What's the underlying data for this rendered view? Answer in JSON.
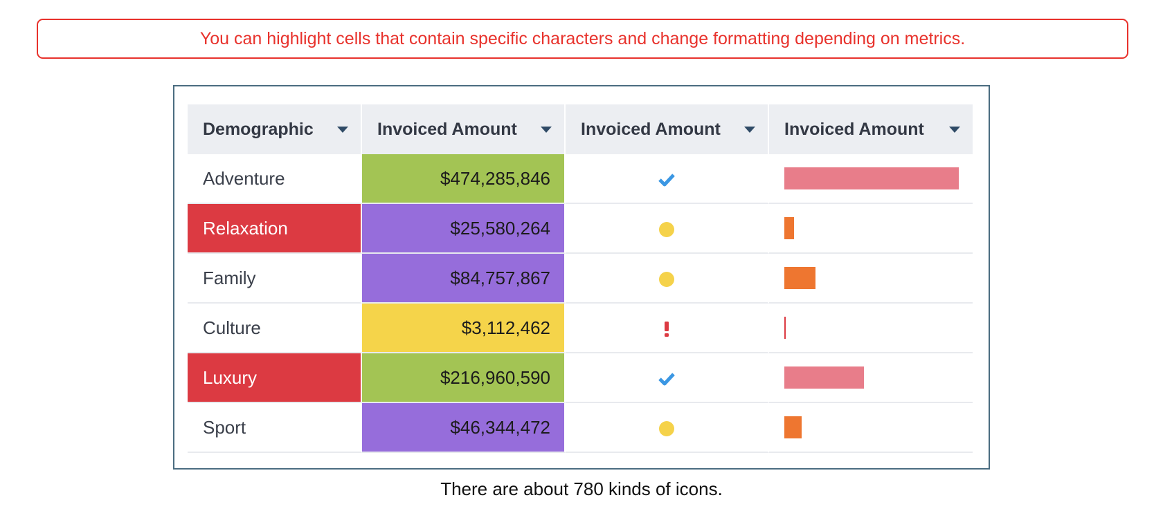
{
  "banner": {
    "text": "You can highlight cells that contain specific characters and change formatting depending on metrics."
  },
  "table": {
    "headers": [
      "Demographic",
      "Invoiced Amount",
      "Invoiced Amount",
      "Invoiced Amount"
    ],
    "rows": [
      {
        "demographic": "Adventure",
        "amount": "$474,285,846",
        "value": 474285846,
        "highlight_name": false,
        "amount_color": "#a3c454",
        "status_icon": "check-icon",
        "status_color": "#3b97e3",
        "bar_color": "#e87d8a"
      },
      {
        "demographic": "Relaxation",
        "amount": "$25,580,264",
        "value": 25580264,
        "highlight_name": true,
        "amount_color": "#966ddb",
        "status_icon": "dot-icon",
        "status_color": "#f5d24a",
        "bar_color": "#ee7630"
      },
      {
        "demographic": "Family",
        "amount": "$84,757,867",
        "value": 84757867,
        "highlight_name": false,
        "amount_color": "#966ddb",
        "status_icon": "dot-icon",
        "status_color": "#f5d24a",
        "bar_color": "#ee7630"
      },
      {
        "demographic": "Culture",
        "amount": "$3,112,462",
        "value": 3112462,
        "highlight_name": false,
        "amount_color": "#f5d44a",
        "status_icon": "exclamation-icon",
        "status_color": "#dc3a42",
        "bar_color": "#dc3a42"
      },
      {
        "demographic": "Luxury",
        "amount": "$216,960,590",
        "value": 216960590,
        "highlight_name": true,
        "amount_color": "#a3c454",
        "status_icon": "check-icon",
        "status_color": "#3b97e3",
        "bar_color": "#e87d8a"
      },
      {
        "demographic": "Sport",
        "amount": "$46,344,472",
        "value": 46344472,
        "highlight_name": false,
        "amount_color": "#966ddb",
        "status_icon": "dot-icon",
        "status_color": "#f5d24a",
        "bar_color": "#ee7630"
      }
    ]
  },
  "caption": {
    "text": "There are about 780 kinds of icons."
  },
  "colors": {
    "banner_accent": "#e8322c",
    "frame_border": "#4a6c80",
    "header_bg": "#eceef2",
    "name_highlight": "#dc3a42"
  }
}
